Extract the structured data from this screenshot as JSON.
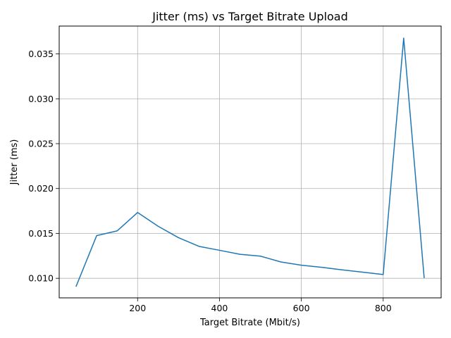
{
  "chart_data": {
    "type": "line",
    "title": "Jitter (ms) vs Target Bitrate Upload",
    "xlabel": "Target Bitrate (Mbit/s)",
    "ylabel": "Jitter (ms)",
    "xlim": [
      8.5,
      941.5
    ],
    "ylim": [
      0.00782,
      0.0381
    ],
    "xticks": [
      200,
      400,
      600,
      800
    ],
    "xtick_labels": [
      "200",
      "400",
      "600",
      "800"
    ],
    "yticks": [
      0.01,
      0.015,
      0.02,
      0.025,
      0.03,
      0.035
    ],
    "ytick_labels": [
      "0.010",
      "0.015",
      "0.020",
      "0.025",
      "0.030",
      "0.035"
    ],
    "grid": true,
    "series": [
      {
        "color": "#1f77b4",
        "x": [
          50,
          100,
          150,
          200,
          250,
          300,
          350,
          400,
          450,
          500,
          550,
          600,
          650,
          700,
          750,
          800,
          850,
          900
        ],
        "y": [
          0.00912,
          0.01475,
          0.01528,
          0.01733,
          0.0158,
          0.01452,
          0.01356,
          0.01312,
          0.01267,
          0.01247,
          0.01182,
          0.01146,
          0.01122,
          0.01094,
          0.01068,
          0.01042,
          0.03676,
          0.01008
        ]
      }
    ]
  }
}
